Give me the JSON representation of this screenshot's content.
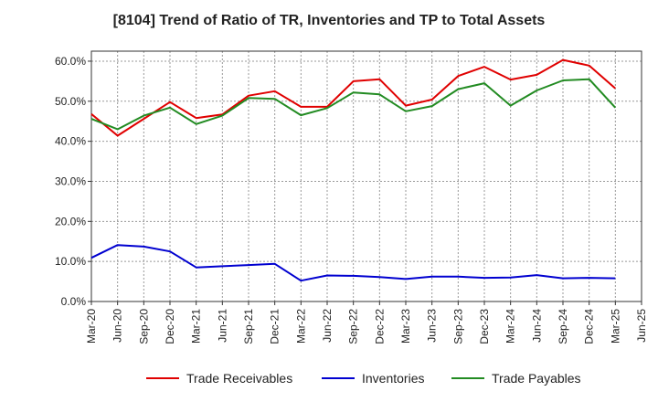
{
  "chart_data": {
    "type": "line",
    "title": "[8104]  Trend of Ratio of TR, Inventories and TP to Total Assets",
    "xlabel": "",
    "ylabel": "",
    "ylim": [
      0,
      62.5
    ],
    "yticks": [
      "0.0%",
      "10.0%",
      "20.0%",
      "30.0%",
      "40.0%",
      "50.0%",
      "60.0%"
    ],
    "grid": true,
    "legend_position": "bottom",
    "x_ticks": [
      "Mar-20",
      "Jun-20",
      "Sep-20",
      "Dec-20",
      "Mar-21",
      "Jun-21",
      "Sep-21",
      "Dec-21",
      "Mar-22",
      "Jun-22",
      "Sep-22",
      "Dec-22",
      "Mar-23",
      "Jun-23",
      "Sep-23",
      "Dec-23",
      "Mar-24",
      "Jun-24",
      "Sep-24",
      "Dec-24",
      "Mar-25",
      "Jun-25"
    ],
    "x": [
      "Mar-20",
      "Jun-20",
      "Sep-20",
      "Dec-20",
      "Mar-21",
      "Jun-21",
      "Sep-21",
      "Dec-21",
      "Mar-22",
      "Jun-22",
      "Sep-22",
      "Dec-22",
      "Mar-23",
      "Jun-23",
      "Sep-23",
      "Dec-23",
      "Mar-24",
      "Jun-24",
      "Sep-24",
      "Dec-24",
      "Mar-25"
    ],
    "series": [
      {
        "name": "Trade Receivables",
        "color": "#e00000",
        "values": [
          46.8,
          41.4,
          45.6,
          49.8,
          45.8,
          46.7,
          51.4,
          52.5,
          48.6,
          48.6,
          55.0,
          55.5,
          48.9,
          50.4,
          56.3,
          58.6,
          55.4,
          56.6,
          60.3,
          58.9,
          53.2
        ]
      },
      {
        "name": "Inventories",
        "color": "#0000d0",
        "values": [
          10.9,
          14.1,
          13.7,
          12.5,
          8.5,
          8.8,
          9.1,
          9.4,
          5.2,
          6.5,
          6.4,
          6.1,
          5.6,
          6.2,
          6.2,
          5.9,
          6.0,
          6.6,
          5.8,
          5.9,
          5.8
        ]
      },
      {
        "name": "Trade Payables",
        "color": "#228b22",
        "values": [
          45.6,
          43.0,
          46.4,
          48.4,
          44.3,
          46.4,
          50.8,
          50.6,
          46.5,
          48.3,
          52.2,
          51.7,
          47.5,
          48.8,
          53.0,
          54.5,
          48.9,
          52.7,
          55.2,
          55.5,
          48.4
        ]
      }
    ]
  }
}
